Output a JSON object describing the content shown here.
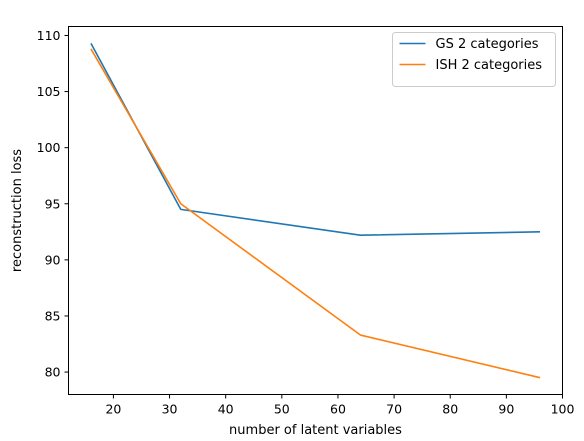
{
  "chart_data": {
    "type": "line",
    "title": "",
    "xlabel": "number of latent variables",
    "ylabel": "reconstruction loss",
    "xlim": [
      12.0,
      100
    ],
    "ylim": [
      78.0,
      110.8
    ],
    "xticks": [
      20,
      30,
      40,
      50,
      60,
      70,
      80,
      90,
      100
    ],
    "yticks": [
      80,
      85,
      90,
      95,
      100,
      105,
      110
    ],
    "grid": false,
    "legend_position": "top-right",
    "series": [
      {
        "name": "GS 2 categories",
        "color": "#1f77b4",
        "x": [
          16,
          32,
          64,
          96
        ],
        "y": [
          109.3,
          94.5,
          92.2,
          92.5
        ]
      },
      {
        "name": "ISH 2 categories",
        "color": "#ff7f0e",
        "x": [
          16,
          32,
          64,
          96
        ],
        "y": [
          108.8,
          95.0,
          83.3,
          79.5
        ]
      }
    ]
  }
}
